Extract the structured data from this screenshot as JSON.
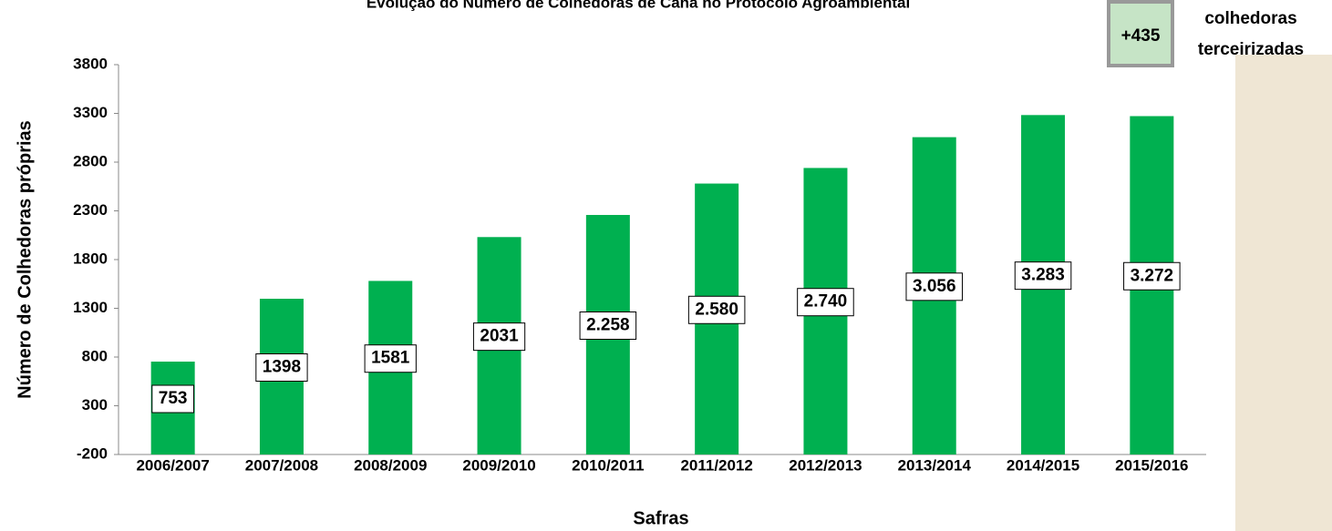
{
  "chart_data": {
    "type": "bar",
    "title": "Evolução do Número de Colhedoras de Cana no Protocolo Agroambiental",
    "x_label": "Safras",
    "y_label": "Número de Colhedoras próprias",
    "categories": [
      "2006/2007",
      "2007/2008",
      "2008/2009",
      "2009/2010",
      "2010/2011",
      "2011/2012",
      "2012/2013",
      "2013/2014",
      "2014/2015",
      "2015/2016"
    ],
    "values": [
      753,
      1398,
      1581,
      2031,
      2258,
      2580,
      2740,
      3056,
      3283,
      3272
    ],
    "value_labels": [
      "753",
      "1398",
      "1581",
      "2031",
      "2.258",
      "2.580",
      "2.740",
      "3.056",
      "3.283",
      "3.272"
    ],
    "color": "#00b050",
    "ylim": [
      -200,
      3800
    ],
    "yticks": [
      -200,
      300,
      800,
      1300,
      1800,
      2300,
      2800,
      3300,
      3800
    ],
    "annotation": {
      "value": "+435",
      "text_lines": [
        "colhedoras",
        "terceirizadas"
      ]
    }
  }
}
